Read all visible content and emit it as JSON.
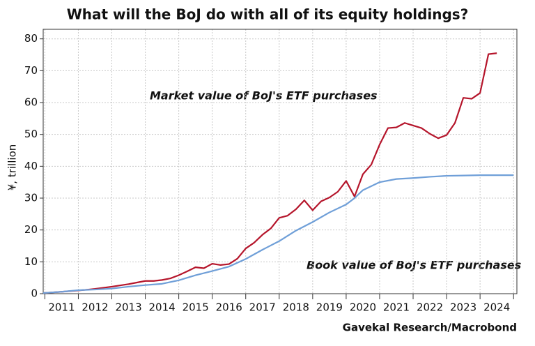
{
  "chart_data": {
    "type": "line",
    "title": "What will the BoJ do with all of its equity holdings?",
    "ylabel": "¥, trillion",
    "source": "Gavekal Research/Macrobond",
    "xlim": [
      2010.95,
      2025.1
    ],
    "ylim": [
      0,
      83
    ],
    "yticks": [
      0,
      10,
      20,
      30,
      40,
      50,
      60,
      70,
      80
    ],
    "xticks": [
      2011,
      2012,
      2013,
      2014,
      2015,
      2016,
      2017,
      2018,
      2019,
      2020,
      2021,
      2022,
      2023,
      2024,
      2025
    ],
    "xtick_labels": [
      {
        "value": 2011.5,
        "label": "2011"
      },
      {
        "value": 2012.5,
        "label": "2012"
      },
      {
        "value": 2013.5,
        "label": "2013"
      },
      {
        "value": 2014.5,
        "label": "2014"
      },
      {
        "value": 2015.5,
        "label": "2015"
      },
      {
        "value": 2016.5,
        "label": "2016"
      },
      {
        "value": 2017.5,
        "label": "2017"
      },
      {
        "value": 2018.5,
        "label": "2018"
      },
      {
        "value": 2019.5,
        "label": "2019"
      },
      {
        "value": 2020.5,
        "label": "2020"
      },
      {
        "value": 2021.5,
        "label": "2021"
      },
      {
        "value": 2022.5,
        "label": "2022"
      },
      {
        "value": 2023.5,
        "label": "2023"
      },
      {
        "value": 2024.5,
        "label": "2024"
      }
    ],
    "grid": true,
    "series": [
      {
        "name": "Market value of BoJ's ETF purchases",
        "color": "#b5152b",
        "x": [
          2010.95,
          2011.5,
          2012,
          2012.5,
          2013,
          2013.5,
          2013.75,
          2014,
          2014.25,
          2014.5,
          2014.75,
          2015,
          2015.25,
          2015.5,
          2015.75,
          2016,
          2016.25,
          2016.5,
          2016.75,
          2017,
          2017.25,
          2017.5,
          2017.75,
          2018,
          2018.25,
          2018.5,
          2018.75,
          2019,
          2019.25,
          2019.5,
          2019.75,
          2020,
          2020.25,
          2020.5,
          2020.75,
          2021,
          2021.25,
          2021.5,
          2021.75,
          2022,
          2022.25,
          2022.5,
          2022.75,
          2023,
          2023.25,
          2023.5,
          2023.75,
          2024,
          2024.25,
          2024.5
        ],
        "values": [
          0.2,
          0.6,
          1.0,
          1.5,
          2.2,
          3.0,
          3.5,
          4.0,
          4.0,
          4.3,
          4.8,
          5.8,
          7.0,
          8.3,
          8.0,
          9.4,
          9.0,
          9.3,
          11.0,
          14.2,
          16.0,
          18.5,
          20.5,
          23.8,
          24.5,
          26.5,
          29.3,
          26.2,
          29.0,
          30.2,
          32.0,
          35.4,
          30.5,
          37.5,
          40.5,
          46.8,
          52.0,
          52.2,
          53.6,
          52.8,
          52.0,
          50.2,
          48.8,
          49.8,
          53.6,
          61.5,
          61.2,
          63.0,
          75.2,
          75.5
        ]
      },
      {
        "name": "Book value of BoJ's ETF purchases",
        "color": "#6f9fd8",
        "x": [
          2010.95,
          2011.5,
          2012,
          2012.5,
          2013,
          2013.5,
          2014,
          2014.5,
          2015,
          2015.5,
          2016,
          2016.5,
          2017,
          2017.5,
          2018,
          2018.5,
          2019,
          2019.5,
          2020,
          2020.25,
          2020.5,
          2021,
          2021.5,
          2022,
          2022.5,
          2023,
          2023.5,
          2024,
          2024.5,
          2025
        ],
        "values": [
          0.2,
          0.6,
          1.1,
          1.3,
          1.6,
          2.2,
          2.7,
          3.1,
          4.2,
          5.8,
          7.1,
          8.5,
          10.9,
          13.8,
          16.5,
          19.8,
          22.5,
          25.5,
          28.0,
          30.0,
          32.5,
          35.0,
          36.0,
          36.3,
          36.7,
          37.0,
          37.1,
          37.2,
          37.2,
          37.2
        ]
      }
    ]
  }
}
